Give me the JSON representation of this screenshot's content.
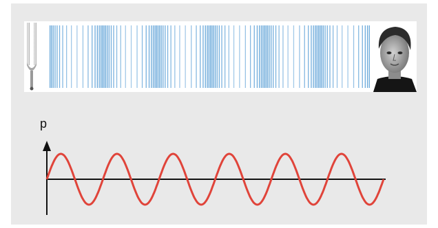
{
  "diagram": {
    "axis_label": "p",
    "colors": {
      "panel": "#e9e9e9",
      "strip": "#ffffff",
      "wave_bars": "#5a9fd6",
      "curve": "#e0443a",
      "axes": "#111111"
    },
    "icons": [
      "tuning-fork-icon",
      "human-head-icon"
    ],
    "curve_cycles": 6
  }
}
